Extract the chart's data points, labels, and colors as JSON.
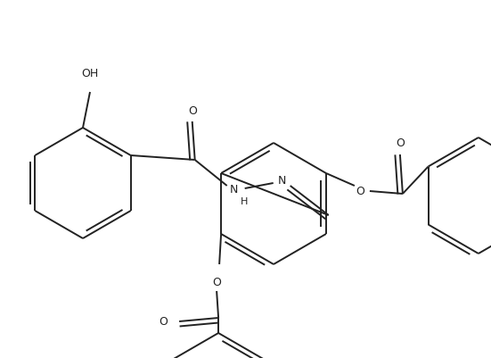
{
  "line_color": "#222222",
  "bg_color": "#ffffff",
  "lw": 1.4,
  "font_size": 9,
  "figsize": [
    5.51,
    4.01
  ],
  "dpi": 100,
  "xlim": [
    0,
    551
  ],
  "ylim": [
    0,
    401
  ]
}
